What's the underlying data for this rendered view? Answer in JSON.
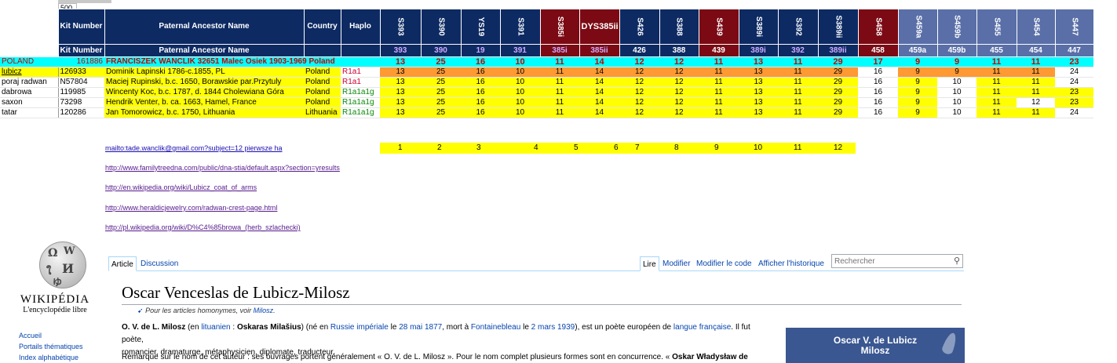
{
  "zoom": "500",
  "header": {
    "kit": "Kit Number",
    "ancestor": "Paternal Ancestor Name",
    "country": "Country",
    "haplo": "Haplo",
    "markers": [
      "S393",
      "S390",
      "YS19",
      "S391",
      "S385i",
      "DYS385ii",
      "S426",
      "S388",
      "S439",
      "S389i",
      "S392",
      "S389ii",
      "S458",
      "S459a",
      "S459b",
      "S455",
      "S454",
      "S447"
    ],
    "show_rot": [
      true,
      true,
      true,
      true,
      true,
      false,
      true,
      true,
      true,
      true,
      true,
      true,
      true,
      true,
      true,
      true,
      true,
      true
    ],
    "marker_colors": [
      "#0d2a63",
      "#0d2a63",
      "#0d2a63",
      "#0d2a63",
      "#7b0a14",
      "#7b0a14",
      "#0d2a63",
      "#0d2a63",
      "#7b0a14",
      "#0d2a63",
      "#0d2a63",
      "#0d2a63",
      "#7b0a14",
      "#5a6fa8",
      "#5a6fa8",
      "#5a6fa8",
      "#5a6fa8",
      "#5a6fa8"
    ],
    "codes": [
      "393",
      "390",
      "19",
      "391",
      "385i",
      "385ii",
      "426",
      "388",
      "439",
      "389i",
      "392",
      "389ii",
      "458",
      "459a",
      "459b",
      "455",
      "454",
      "447"
    ],
    "code_colors": [
      "#cfaaff",
      "#cfaaff",
      "#cfaaff",
      "#cfaaff",
      "#cfaaff",
      "#cfaaff",
      "#ffffff",
      "#ffffff",
      "#ffffff",
      "#cfaaff",
      "#cfaaff",
      "#cfaaff",
      "#ffffff",
      "#ffffff",
      "#ffffff",
      "#ffffff",
      "#ffffff",
      "#ffffff"
    ]
  },
  "poland": {
    "label": "POLAND",
    "kit": "161886",
    "name": "FRANCISZEK WANCLIK  32651 Malec Osiek 1903-1969  Poland",
    "values": [
      "13",
      "25",
      "16",
      "10",
      "11",
      "14",
      "12",
      "12",
      "11",
      "13",
      "11",
      "29",
      "17",
      "9",
      "9",
      "11",
      "11",
      "23"
    ]
  },
  "rows": [
    {
      "group": "lubicz",
      "kit": "126933",
      "name": "Dominik Lapinski 1786-c.1855, PL",
      "country": "Poland",
      "haplo": "R1a1",
      "values": [
        "13",
        "25",
        "16",
        "10",
        "11",
        "14",
        "12",
        "12",
        "11",
        "13",
        "11",
        "29",
        "16",
        "9",
        "9",
        "11",
        "11",
        "24"
      ],
      "fills": [
        "o",
        "o",
        "o",
        "o",
        "o",
        "o",
        "o",
        "o",
        "o",
        "o",
        "o",
        "o",
        "w",
        "o",
        "o",
        "o",
        "o",
        "w"
      ]
    },
    {
      "group": "poraj radwan",
      "kit": "N57804",
      "name": "Maciej Rupinski, b.c. 1650, Borawskie par.Przytuly",
      "country": "Poland",
      "haplo": "R1a1",
      "values": [
        "13",
        "25",
        "16",
        "10",
        "11",
        "14",
        "12",
        "12",
        "11",
        "13",
        "11",
        "29",
        "16",
        "9",
        "10",
        "11",
        "11",
        "24"
      ],
      "fills": [
        "y",
        "y",
        "y",
        "y",
        "y",
        "y",
        "y",
        "y",
        "y",
        "y",
        "y",
        "y",
        "w",
        "y",
        "w",
        "y",
        "y",
        "w"
      ]
    },
    {
      "group": "dabrowa",
      "kit": "119985",
      "name": "Wincenty Koc, b.c. 1787, d. 1844 Cholewiana Góra",
      "country": "Poland",
      "haplo": "R1a1a1g",
      "values": [
        "13",
        "25",
        "16",
        "10",
        "11",
        "14",
        "12",
        "12",
        "11",
        "13",
        "11",
        "29",
        "16",
        "9",
        "10",
        "11",
        "11",
        "23"
      ],
      "fills": [
        "y",
        "y",
        "y",
        "y",
        "y",
        "y",
        "y",
        "y",
        "y",
        "y",
        "y",
        "y",
        "w",
        "y",
        "w",
        "y",
        "y",
        "y"
      ]
    },
    {
      "group": "saxon",
      "kit": "73298",
      "name": "Hendrik Venter, b. ca. 1663, Hamel, France",
      "country": "Poland",
      "haplo": "R1a1a1g",
      "values": [
        "13",
        "25",
        "16",
        "10",
        "11",
        "14",
        "12",
        "12",
        "11",
        "13",
        "11",
        "29",
        "16",
        "9",
        "10",
        "11",
        "12",
        "23"
      ],
      "fills": [
        "y",
        "y",
        "y",
        "y",
        "y",
        "y",
        "y",
        "y",
        "y",
        "y",
        "y",
        "y",
        "w",
        "y",
        "w",
        "y",
        "w",
        "y"
      ]
    },
    {
      "group": "tatar",
      "kit": "120286",
      "name": "Jan Tomorowicz, b.c. 1750, Lithuania",
      "country": "Lithuania",
      "haplo": "R1a1a1g",
      "values": [
        "13",
        "25",
        "16",
        "10",
        "11",
        "14",
        "12",
        "12",
        "11",
        "13",
        "11",
        "29",
        "16",
        "9",
        "10",
        "11",
        "11",
        "24"
      ],
      "fills": [
        "y",
        "y",
        "y",
        "y",
        "y",
        "y",
        "y",
        "y",
        "y",
        "y",
        "y",
        "y",
        "w",
        "y",
        "w",
        "y",
        "y",
        "w"
      ]
    }
  ],
  "links": [
    "mailto:tade.wanclik@gmail.com?subject=12 pierwsze ha",
    "http://www.familytreedna.com/public/dna-stia/default.aspx?section=yresults",
    "http://en.wikipedia.org/wiki/Lubicz_coat_of_arms",
    "http://www.heraldicjewelry.com/radwan-crest-page.html",
    "http://pl.wikipedia.org/wiki/D%C4%85browa_(herb_szlachecki)"
  ],
  "numbers": [
    "1",
    "2",
    "3",
    "4",
    "5",
    "6",
    "7",
    "8",
    "9",
    "10",
    "11",
    "12"
  ],
  "colors": {
    "cyan": "#00ffff",
    "orange": "#ff9933",
    "yellow": "#ffff00",
    "red_text": "#cc0000",
    "wiki_blue": "#0645ad",
    "infobox": "#3a5792"
  },
  "wiki": {
    "logo_title": "WIKIPÉDIA",
    "logo_sub": "L'encyclopédie libre",
    "side": [
      "Accueil",
      "Portails thématiques",
      "Index alphabétique"
    ],
    "tab_article": "Article",
    "tab_discussion": "Discussion",
    "actions": [
      "Lire",
      "Modifier",
      "Modifier le code",
      "Afficher l'historique"
    ],
    "search_placeholder": "Rechercher",
    "title": "Oscar Venceslas de Lubicz-Milosz",
    "homonym_prefix": "Pour les articles homonymes, voir ",
    "homonym_link": "Milosz",
    "p1": {
      "b1": "O. V. de L. Milosz",
      "t1": " (en ",
      "a1": "lituanien",
      "t2": " : ",
      "b2": "Oskaras Milašius",
      "t3": ") (né en ",
      "a2": "Russie impériale",
      "t4": " le ",
      "a3": "28 mai 1877",
      "t5": ", mort à ",
      "a4": "Fontainebleau",
      "t6": " le ",
      "a5": "2 mars 1939",
      "t7": "), est un poète européen de ",
      "a6": "langue française",
      "t8": ". Il fut poète,"
    },
    "p1b": "romancier, dramaturge, métaphysicien, diplomate, traducteur.",
    "p2": {
      "t1": "Remarque sur le nom de cet auteur : ses ouvrages portent généralement « O. V. de L. Milosz ». Pour le nom complet plusieurs formes sont en concurrence. « ",
      "b1": "Oskar Władysław de Lubicz"
    },
    "infobox": "Oscar V. de Lubicz Milosz"
  }
}
